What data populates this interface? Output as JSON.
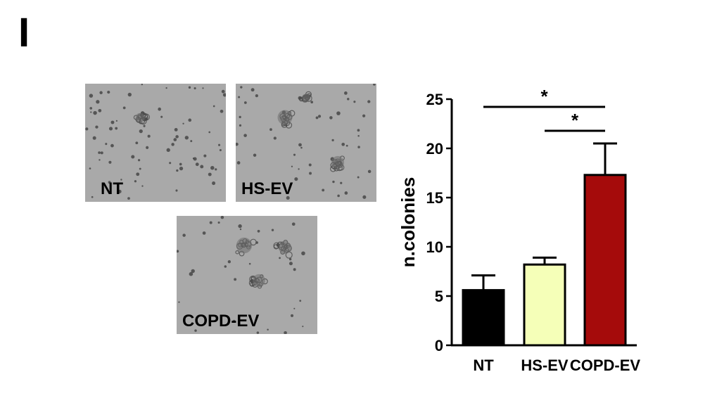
{
  "panel_label": "I",
  "images": [
    {
      "label": "NT"
    },
    {
      "label": "HS-EV"
    },
    {
      "label": "COPD-EV"
    }
  ],
  "chart_data": {
    "type": "bar",
    "categories": [
      "NT",
      "HS-EV",
      "COPD-EV"
    ],
    "values": [
      5.6,
      8.2,
      17.3
    ],
    "errors": [
      1.5,
      0.7,
      3.2
    ],
    "colors": [
      "#000000",
      "#f5ffb8",
      "#a50b0b"
    ],
    "ylabel": "n.colonies",
    "xlabel": "",
    "ylim": [
      0,
      25
    ],
    "yticks": [
      0,
      5,
      10,
      15,
      20,
      25
    ],
    "significance": [
      {
        "from": 0,
        "to": 2,
        "label": "*"
      },
      {
        "from": 1,
        "to": 2,
        "label": "*"
      }
    ]
  }
}
